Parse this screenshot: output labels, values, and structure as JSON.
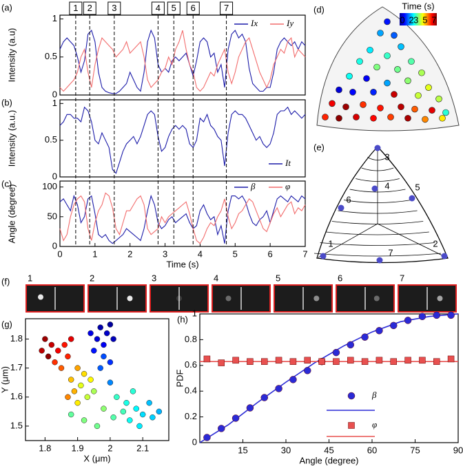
{
  "chart_data": [
    {
      "type": "line",
      "panel": "(a)",
      "ylabel": "Intensity (a.u)",
      "x": [
        0,
        0.1,
        0.2,
        0.3,
        0.4,
        0.5,
        0.6,
        0.7,
        0.8,
        0.9,
        1,
        1.1,
        1.2,
        1.3,
        1.4,
        1.5,
        1.6,
        1.7,
        1.8,
        1.9,
        2,
        2.1,
        2.2,
        2.3,
        2.4,
        2.5,
        2.6,
        2.7,
        2.8,
        2.9,
        3,
        3.1,
        3.2,
        3.3,
        3.4,
        3.5,
        3.6,
        3.7,
        3.8,
        3.9,
        4,
        4.1,
        4.2,
        4.3,
        4.4,
        4.5,
        4.6,
        4.7,
        4.8,
        4.9,
        5,
        5.1,
        5.2,
        5.3,
        5.4,
        5.5,
        5.6,
        5.7,
        5.8,
        5.9,
        6,
        6.1,
        6.2,
        6.3,
        6.4,
        6.5,
        6.6,
        6.7,
        6.8,
        6.9,
        7
      ],
      "series": [
        {
          "name": "Ix",
          "color": "#1a1aa8",
          "values": [
            0.6,
            0.7,
            0.75,
            0.7,
            0.65,
            0.5,
            0.3,
            0.45,
            0.8,
            0.85,
            0.7,
            0.3,
            0.1,
            0.05,
            0.03,
            0.02,
            0.02,
            0.05,
            0.1,
            0.15,
            0.3,
            0.2,
            0.1,
            0.05,
            0.3,
            0.7,
            0.85,
            0.75,
            0.4,
            0.3,
            0.35,
            0.3,
            0.45,
            0.5,
            0.45,
            0.5,
            0.55,
            0.4,
            0.25,
            0.45,
            0.7,
            0.75,
            0.7,
            0.5,
            0.55,
            0.3,
            0.4,
            0.1,
            0.6,
            0.8,
            0.85,
            0.75,
            0.8,
            0.7,
            0.35,
            0.15,
            0.1,
            0.05,
            0.05,
            0.1,
            0.1,
            0.3,
            0.6,
            0.7,
            0.75,
            0.7,
            0.65,
            0.7,
            0.6,
            0.7,
            0.65
          ]
        },
        {
          "name": "Iy",
          "color": "#f26b6b",
          "values": [
            0.1,
            0.05,
            0.1,
            0.15,
            0.2,
            0.3,
            0.5,
            0.6,
            0.3,
            0.1,
            0.4,
            0.6,
            0.75,
            0.7,
            0.65,
            0.6,
            0.5,
            0.55,
            0.6,
            0.7,
            0.55,
            0.6,
            0.65,
            0.7,
            0.5,
            0.2,
            0.1,
            0.15,
            0.2,
            0.3,
            0.35,
            0.5,
            0.4,
            0.6,
            0.7,
            0.85,
            0.6,
            0.4,
            0.3,
            0.1,
            0.05,
            0.1,
            0.2,
            0.3,
            0.25,
            0.4,
            0.5,
            0.6,
            0.3,
            0.15,
            0.3,
            0.5,
            0.6,
            0.7,
            0.75,
            0.6,
            0.45,
            0.3,
            0.2,
            0.1,
            0.2,
            0.4,
            0.5,
            0.6,
            0.55,
            0.7,
            0.75,
            0.5,
            0.6,
            0.55,
            0.5
          ]
        }
      ],
      "xlim": [
        0,
        7
      ],
      "ylim": [
        0,
        1.05
      ],
      "yticks": [
        0,
        0.5,
        1
      ],
      "events": {
        "labels": [
          "1",
          "2",
          "3",
          "4",
          "5",
          "6",
          "7"
        ],
        "x": [
          0.45,
          0.85,
          1.55,
          2.8,
          3.25,
          3.8,
          4.75
        ]
      }
    },
    {
      "type": "line",
      "panel": "(b)",
      "ylabel": "Intensity (a.u.)",
      "x": [
        0,
        0.1,
        0.2,
        0.3,
        0.4,
        0.5,
        0.6,
        0.7,
        0.8,
        0.9,
        1,
        1.1,
        1.2,
        1.3,
        1.4,
        1.5,
        1.6,
        1.7,
        1.8,
        1.9,
        2,
        2.1,
        2.2,
        2.3,
        2.4,
        2.5,
        2.6,
        2.7,
        2.8,
        2.9,
        3,
        3.1,
        3.2,
        3.3,
        3.4,
        3.5,
        3.6,
        3.7,
        3.8,
        3.9,
        4,
        4.1,
        4.2,
        4.3,
        4.4,
        4.5,
        4.6,
        4.7,
        4.8,
        4.9,
        5,
        5.1,
        5.2,
        5.3,
        5.4,
        5.5,
        5.6,
        5.7,
        5.8,
        5.9,
        6,
        6.1,
        6.2,
        6.3,
        6.4,
        6.5,
        6.6,
        6.7,
        6.8,
        6.9,
        7
      ],
      "series": [
        {
          "name": "It",
          "color": "#1a1aa8",
          "values": [
            0.7,
            0.75,
            0.85,
            0.85,
            0.8,
            0.8,
            0.75,
            0.95,
            0.9,
            0.75,
            0.5,
            0.45,
            0.6,
            0.5,
            0.4,
            0.1,
            0.05,
            0.2,
            0.35,
            0.45,
            0.5,
            0.55,
            0.45,
            0.55,
            0.7,
            0.85,
            0.9,
            0.85,
            0.55,
            0.35,
            0.4,
            0.55,
            0.65,
            0.7,
            0.65,
            0.7,
            0.65,
            0.45,
            0.4,
            0.5,
            0.8,
            0.75,
            0.85,
            0.7,
            0.65,
            0.55,
            0.5,
            0.15,
            0.6,
            0.85,
            0.9,
            0.85,
            0.85,
            0.8,
            0.7,
            0.6,
            0.5,
            0.55,
            0.45,
            0.4,
            0.45,
            0.6,
            0.85,
            0.9,
            0.9,
            0.95,
            0.85,
            0.9,
            0.85,
            0.8,
            0.85
          ]
        }
      ],
      "xlim": [
        0,
        7
      ],
      "ylim": [
        0,
        1.05
      ],
      "yticks": [
        0,
        0.5,
        1
      ]
    },
    {
      "type": "line",
      "panel": "(c)",
      "ylabel": "Angle (degree)",
      "xlabel": "Time (s)",
      "x": [
        0,
        0.1,
        0.2,
        0.3,
        0.4,
        0.5,
        0.6,
        0.7,
        0.8,
        0.9,
        1,
        1.1,
        1.2,
        1.3,
        1.4,
        1.5,
        1.6,
        1.7,
        1.8,
        1.9,
        2,
        2.1,
        2.2,
        2.3,
        2.4,
        2.5,
        2.6,
        2.7,
        2.8,
        2.9,
        3,
        3.1,
        3.2,
        3.3,
        3.4,
        3.5,
        3.6,
        3.7,
        3.8,
        3.9,
        4,
        4.1,
        4.2,
        4.3,
        4.4,
        4.5,
        4.6,
        4.7,
        4.8,
        4.9,
        5,
        5.1,
        5.2,
        5.3,
        5.4,
        5.5,
        5.6,
        5.7,
        5.8,
        5.9,
        6,
        6.1,
        6.2,
        6.3,
        6.4,
        6.5,
        6.6,
        6.7,
        6.8,
        6.9,
        7
      ],
      "series": [
        {
          "name": "β",
          "color": "#1a1aa8",
          "values": [
            75,
            80,
            70,
            60,
            85,
            70,
            40,
            50,
            80,
            85,
            55,
            20,
            15,
            20,
            10,
            5,
            10,
            15,
            20,
            30,
            25,
            20,
            15,
            10,
            30,
            60,
            85,
            70,
            40,
            30,
            35,
            45,
            50,
            40,
            45,
            50,
            55,
            40,
            30,
            35,
            60,
            70,
            55,
            45,
            50,
            20,
            35,
            5,
            60,
            85,
            85,
            80,
            85,
            75,
            55,
            40,
            35,
            45,
            50,
            60,
            40,
            60,
            80,
            85,
            80,
            75,
            85,
            80,
            75,
            85,
            80
          ]
        },
        {
          "name": "φ",
          "color": "#f26b6b",
          "values": [
            30,
            10,
            20,
            50,
            70,
            80,
            85,
            75,
            30,
            10,
            40,
            60,
            70,
            90,
            85,
            65,
            30,
            20,
            40,
            60,
            60,
            70,
            80,
            85,
            70,
            30,
            20,
            25,
            30,
            50,
            40,
            50,
            55,
            60,
            65,
            70,
            75,
            55,
            30,
            10,
            5,
            15,
            30,
            40,
            35,
            50,
            60,
            80,
            50,
            30,
            40,
            55,
            60,
            70,
            80,
            75,
            60,
            45,
            30,
            25,
            40,
            55,
            65,
            50,
            60,
            70,
            75,
            55,
            65,
            60,
            70
          ]
        }
      ],
      "xlim": [
        0,
        7
      ],
      "ylim": [
        0,
        110
      ],
      "xticks": [
        0,
        1,
        2,
        3,
        4,
        5,
        6,
        7
      ],
      "yticks": [
        0,
        50,
        100
      ]
    },
    {
      "type": "scatter",
      "panel": "(d)",
      "colorbar": {
        "title": "Time (s)",
        "clim": [
          0,
          7
        ],
        "ticks": [
          0,
          2,
          3,
          5,
          7
        ]
      },
      "x": [
        0,
        -0.1,
        0.1,
        -0.25,
        0.2,
        0,
        -0.4,
        0.35,
        -0.15,
        0.15,
        0.5,
        -0.55,
        -0.3,
        0.3,
        0,
        0.6,
        -0.7,
        -0.5,
        -0.2,
        0.1,
        0.45,
        0.75,
        -0.8,
        -0.6,
        -0.35,
        -0.1,
        0.2,
        0.4,
        0.65,
        0.85,
        -0.9,
        -0.7,
        -0.45,
        -0.2,
        0.05,
        0.3,
        0.55,
        0.8
      ],
      "values": [
        0.9,
        0.8,
        0.78,
        0.65,
        0.68,
        0.6,
        0.55,
        0.55,
        0.5,
        0.48,
        0.45,
        0.42,
        0.4,
        0.38,
        0.36,
        0.32,
        0.3,
        0.28,
        0.28,
        0.26,
        0.25,
        0.22,
        0.18,
        0.15,
        0.17,
        0.14,
        0.15,
        0.13,
        0.12,
        0.1,
        0.06,
        0.05,
        0.06,
        0.05,
        0.06,
        0.05,
        0.04,
        0.05
      ],
      "time": [
        1,
        2,
        1.5,
        2.5,
        2.2,
        3,
        2.8,
        3.2,
        3.5,
        3.4,
        3.8,
        2.7,
        0.8,
        3.6,
        2,
        4.2,
        0.6,
        0.9,
        1.1,
        6.5,
        4,
        3.9,
        6.2,
        6.8,
        5.8,
        6,
        6.6,
        5.5,
        6.3,
        2.9,
        5.9,
        6.9,
        6.4,
        6.1,
        5.7,
        6.7,
        5.2,
        4.5
      ]
    },
    {
      "type": "diagram",
      "panel": "(e)",
      "labels": [
        "1",
        "2",
        "3",
        "4",
        "5",
        "6",
        "7"
      ]
    },
    {
      "type": "image_strip",
      "panel": "(f)",
      "labels": [
        "1",
        "2",
        "3",
        "4",
        "5",
        "6",
        "7"
      ]
    },
    {
      "type": "scatter",
      "panel": "(g)",
      "xlabel": "X (μm)",
      "ylabel": "Y (μm)",
      "x": [
        1.97,
        1.99,
        2.0,
        1.96,
        1.98,
        1.95,
        2.01,
        1.94,
        1.8,
        1.82,
        1.84,
        1.81,
        1.86,
        1.83,
        1.88,
        1.85,
        1.87,
        1.79,
        1.9,
        1.92,
        1.88,
        1.91,
        1.94,
        1.89,
        1.93,
        1.9,
        1.95,
        1.87,
        2.02,
        2.05,
        2.08,
        2.1,
        2.06,
        2.12,
        2.04,
        2.09,
        2.13,
        2.01,
        2.07,
        2.15,
        1.92,
        1.88,
        1.96,
        1.98,
        2.0,
        1.97,
        2.0,
        1.98
      ],
      "values": [
        1.84,
        1.82,
        1.85,
        1.8,
        1.78,
        1.76,
        1.8,
        1.82,
        1.8,
        1.78,
        1.76,
        1.74,
        1.78,
        1.72,
        1.8,
        1.7,
        1.74,
        1.76,
        1.7,
        1.68,
        1.66,
        1.64,
        1.66,
        1.62,
        1.6,
        1.58,
        1.62,
        1.6,
        1.6,
        1.58,
        1.56,
        1.54,
        1.52,
        1.58,
        1.55,
        1.5,
        1.53,
        1.53,
        1.62,
        1.55,
        1.52,
        1.54,
        1.5,
        1.56,
        1.65,
        1.7,
        1.72,
        1.74
      ],
      "time": [
        0.3,
        0.5,
        0.2,
        0.6,
        0.8,
        1.0,
        0.4,
        0.7,
        6.8,
        6.5,
        6.2,
        6.9,
        6.0,
        5.8,
        6.3,
        5.5,
        5.9,
        6.6,
        5.0,
        4.6,
        4.8,
        4.2,
        4.4,
        4.9,
        4.0,
        4.5,
        3.8,
        5.2,
        3.0,
        2.8,
        2.6,
        2.4,
        2.7,
        2.2,
        3.1,
        2.5,
        2.3,
        3.2,
        2.9,
        2.1,
        3.5,
        3.3,
        3.4,
        3.6,
        1.8,
        1.5,
        1.2,
        1.4
      ],
      "clim": [
        0,
        7
      ],
      "xlim": [
        1.74,
        2.18
      ],
      "ylim": [
        1.45,
        1.87
      ],
      "xticks": [
        1.8,
        1.9,
        2,
        2.1
      ],
      "yticks": [
        1.5,
        1.6,
        1.7,
        1.8
      ]
    },
    {
      "type": "line",
      "panel": "(h)",
      "xlabel": "Angle (degree)",
      "ylabel": "PDF",
      "x": [
        2.5,
        7.5,
        12.5,
        17.5,
        22.5,
        27.5,
        32.5,
        37.5,
        42.5,
        47.5,
        52.5,
        57.5,
        62.5,
        67.5,
        72.5,
        77.5,
        82.5,
        87.5
      ],
      "series": [
        {
          "name": "β",
          "color": "#2a2ad6",
          "marker": "circle",
          "values": [
            0.04,
            0.11,
            0.19,
            0.27,
            0.35,
            0.42,
            0.49,
            0.56,
            0.63,
            0.7,
            0.76,
            0.82,
            0.87,
            0.91,
            0.95,
            0.98,
            0.99,
            0.99
          ]
        },
        {
          "name": "φ",
          "color": "#e8504f",
          "marker": "square",
          "values": [
            0.65,
            0.62,
            0.64,
            0.63,
            0.63,
            0.64,
            0.63,
            0.64,
            0.63,
            0.63,
            0.64,
            0.63,
            0.64,
            0.63,
            0.64,
            0.64,
            0.63,
            0.65
          ]
        },
        {
          "color": "#2a2ad6",
          "x": [
            0,
            10,
            20,
            30,
            40,
            50,
            60,
            70,
            80,
            90
          ],
          "values": [
            0,
            0.14,
            0.31,
            0.47,
            0.62,
            0.75,
            0.86,
            0.94,
            0.98,
            1
          ]
        },
        {
          "color": "#e8504f",
          "x": [
            0,
            90
          ],
          "values": [
            0.63,
            0.63
          ]
        }
      ],
      "xlim": [
        0,
        90
      ],
      "ylim": [
        0,
        1
      ],
      "xticks": [
        15,
        30,
        45,
        60,
        75,
        90
      ],
      "yticks": [
        0,
        0.2,
        0.4,
        0.6,
        0.8,
        1
      ]
    }
  ]
}
